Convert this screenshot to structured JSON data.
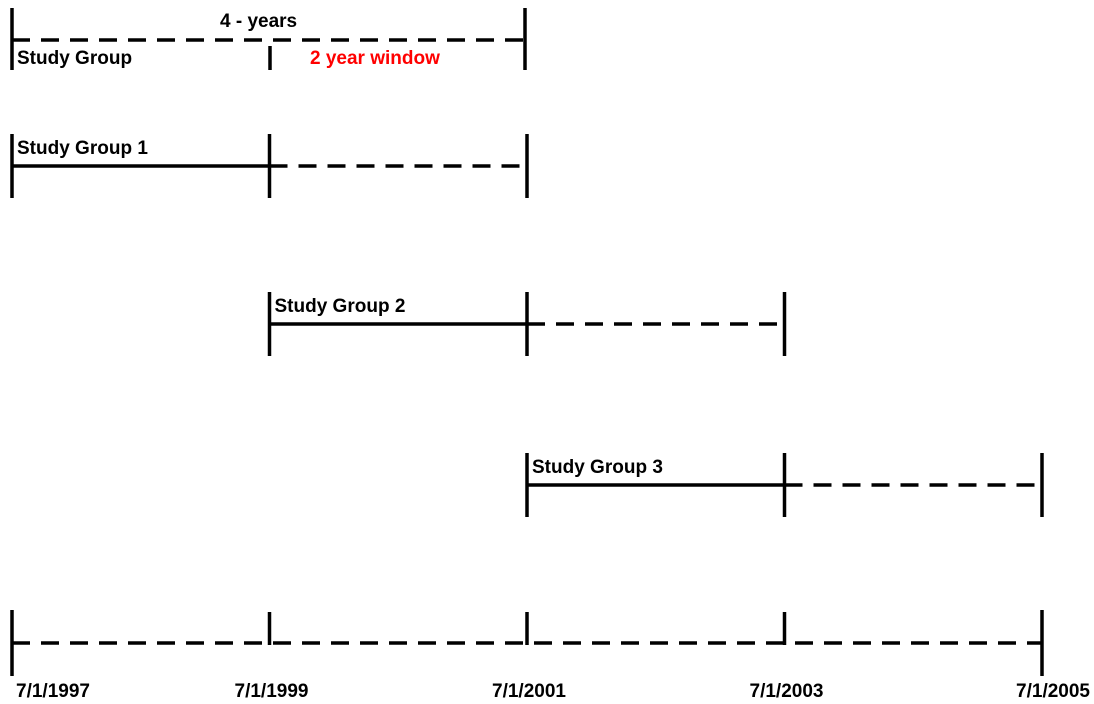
{
  "legend": {
    "years_label": "4 - years",
    "group_label": "Study Group",
    "window_label": "2 year window",
    "window_color": "#ff0000"
  },
  "groups": [
    {
      "label": "Study Group 1",
      "study_start": "7/1/1997",
      "window_start": "7/1/1999",
      "window_end": "7/1/2001"
    },
    {
      "label": "Study Group 2",
      "study_start": "7/1/1999",
      "window_start": "7/1/2001",
      "window_end": "7/1/2003"
    },
    {
      "label": "Study Group 3",
      "study_start": "7/1/2001",
      "window_start": "7/1/2003",
      "window_end": "7/1/2005"
    }
  ],
  "timeline": {
    "ticks": [
      "7/1/1997",
      "7/1/1999",
      "7/1/2001",
      "7/1/2003",
      "7/1/2005"
    ]
  },
  "line_color": "#000000"
}
